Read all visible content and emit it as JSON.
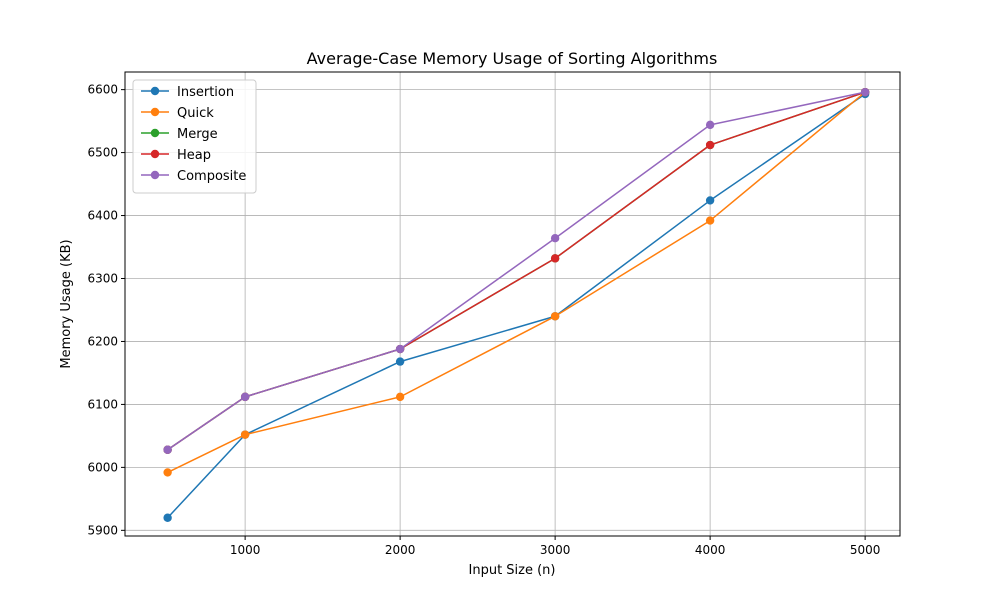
{
  "chart_data": {
    "type": "line",
    "title": "Average-Case Memory Usage of Sorting Algorithms",
    "xlabel": "Input Size (n)",
    "ylabel": "Memory Usage (KB)",
    "x": [
      500,
      1000,
      2000,
      3000,
      4000,
      5000
    ],
    "xticks": [
      1000,
      2000,
      3000,
      4000,
      5000
    ],
    "yticks": [
      5900,
      6000,
      6100,
      6200,
      6300,
      6400,
      6500,
      6600
    ],
    "xlim": [
      225,
      5225
    ],
    "ylim": [
      5891,
      6628
    ],
    "grid": true,
    "legend_position": "upper-left",
    "marker": "circle",
    "series": [
      {
        "name": "Insertion",
        "color": "#1f77b4",
        "values": [
          5920,
          6052,
          6168,
          6240,
          6424,
          6593
        ]
      },
      {
        "name": "Quick",
        "color": "#ff7f0e",
        "values": [
          5992,
          6052,
          6112,
          6240,
          6392,
          6596
        ]
      },
      {
        "name": "Merge",
        "color": "#2ca02c",
        "values": [
          6028,
          6112,
          6188,
          6332,
          6512,
          6596
        ]
      },
      {
        "name": "Heap",
        "color": "#d62728",
        "values": [
          6028,
          6112,
          6188,
          6332,
          6512,
          6596
        ]
      },
      {
        "name": "Composite",
        "color": "#9467bd",
        "values": [
          6028,
          6112,
          6188,
          6364,
          6544,
          6596
        ]
      }
    ]
  }
}
